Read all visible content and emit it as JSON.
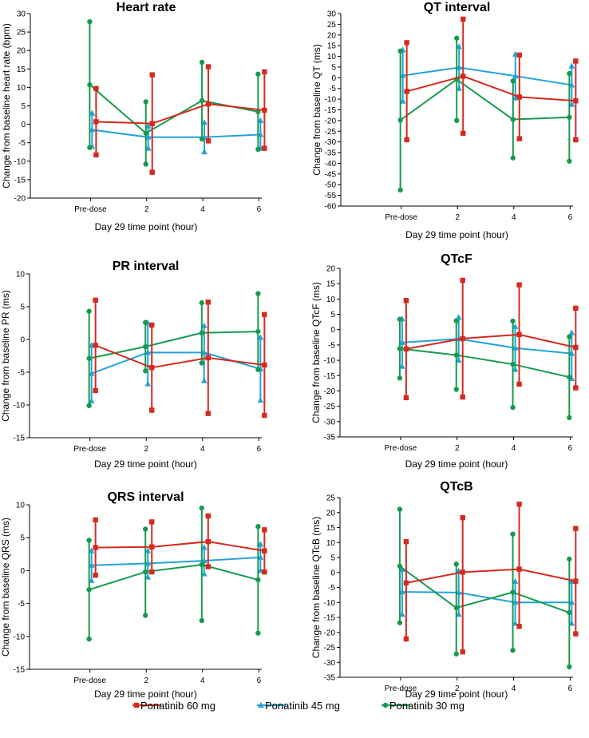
{
  "legend": {
    "items": [
      {
        "label": "Ponatinib 60 mg",
        "color": "#d42a1f",
        "marker": "square"
      },
      {
        "label": "Ponatinib 45 mg",
        "color": "#21a3d8",
        "marker": "triangle"
      },
      {
        "label": "Ponatinib 30 mg",
        "color": "#189a4e",
        "marker": "circle"
      }
    ]
  },
  "chart_data": [
    {
      "type": "line",
      "title": "Heart rate",
      "xlabel": "Day 29 time point (hour)",
      "ylabel": "Change from baseline heart rate (bpm)",
      "categories": [
        "Pre-dose",
        "2",
        "4",
        "6"
      ],
      "ylim": [
        -20,
        30
      ],
      "yticks": [
        30,
        25,
        20,
        15,
        10,
        5,
        0,
        -5,
        -10,
        -15,
        -20
      ],
      "series": [
        {
          "name": "Ponatinib 60 mg",
          "values": [
            0.7,
            0.2,
            5.5,
            3.8
          ],
          "lower": [
            -8.3,
            -13.0,
            -4.5,
            -6.5
          ],
          "upper": [
            9.7,
            13.4,
            15.6,
            14.2
          ]
        },
        {
          "name": "Ponatinib 45 mg",
          "values": [
            -1.5,
            -3.5,
            -3.5,
            -2.8
          ],
          "lower": [
            -6.0,
            -6.5,
            -7.5,
            -6.5
          ],
          "upper": [
            3.0,
            -0.5,
            0.5,
            1.0
          ]
        },
        {
          "name": "Ponatinib 30 mg",
          "values": [
            10.7,
            -2.4,
            6.4,
            3.4
          ],
          "lower": [
            -6.3,
            -10.8,
            -4.0,
            -6.8
          ],
          "upper": [
            27.8,
            6.1,
            16.8,
            13.6
          ]
        }
      ]
    },
    {
      "type": "line",
      "title": "QT interval",
      "xlabel": "Day 29 time point (hour)",
      "ylabel": "Change from baseline QT (ms)",
      "categories": [
        "Pre-dose",
        "2",
        "4",
        "6"
      ],
      "ylim": [
        -60,
        30
      ],
      "yticks": [
        30,
        25,
        20,
        15,
        10,
        5,
        0,
        -5,
        -10,
        -15,
        -20,
        -25,
        -30,
        -35,
        -40,
        -45,
        -50,
        -55,
        -60
      ],
      "series": [
        {
          "name": "Ponatinib 60 mg",
          "values": [
            -6.4,
            0.7,
            -9.0,
            -10.8
          ],
          "lower": [
            -29.0,
            -26.0,
            -28.5,
            -29.0
          ],
          "upper": [
            16.4,
            27.4,
            10.6,
            7.8
          ]
        },
        {
          "name": "Ponatinib 45 mg",
          "values": [
            1.0,
            4.8,
            0.8,
            -3.4
          ],
          "lower": [
            -11.0,
            -5.0,
            -9.5,
            -12.5
          ],
          "upper": [
            13.0,
            14.5,
            11.0,
            5.5
          ]
        },
        {
          "name": "Ponatinib 30 mg",
          "values": [
            -19.8,
            -0.8,
            -19.5,
            -18.5
          ],
          "lower": [
            -52.5,
            -20.0,
            -37.5,
            -39.0
          ],
          "upper": [
            12.5,
            18.5,
            -1.5,
            2.0
          ]
        }
      ]
    },
    {
      "type": "line",
      "title": "PR interval",
      "xlabel": "Day 29 time point (hour)",
      "ylabel": "Change from baseline PR (ms)",
      "categories": [
        "Pre-dose",
        "2",
        "4",
        "6"
      ],
      "ylim": [
        -15,
        10
      ],
      "yticks": [
        10,
        5,
        0,
        -5,
        -10,
        -15
      ],
      "series": [
        {
          "name": "Ponatinib 60 mg",
          "values": [
            -0.9,
            -4.3,
            -2.8,
            -3.9
          ],
          "lower": [
            -7.8,
            -10.8,
            -11.3,
            -11.6
          ],
          "upper": [
            6.0,
            2.2,
            5.7,
            3.8
          ]
        },
        {
          "name": "Ponatinib 45 mg",
          "values": [
            -5.2,
            -2.0,
            -2.0,
            -4.5
          ],
          "lower": [
            -9.4,
            -6.8,
            -6.3,
            -9.3
          ],
          "upper": [
            -0.9,
            2.5,
            2.1,
            0.3
          ]
        },
        {
          "name": "Ponatinib 30 mg",
          "values": [
            -2.9,
            -1.1,
            1.0,
            1.2
          ],
          "lower": [
            -10.1,
            -4.8,
            -3.6,
            -4.6
          ],
          "upper": [
            4.3,
            2.6,
            5.6,
            7.0
          ]
        }
      ]
    },
    {
      "type": "line",
      "title": "QTcF",
      "xlabel": "Day 29 time point (hour)",
      "ylabel": "Change from baseline QTcF (ms)",
      "categories": [
        "Pre-dose",
        "2",
        "4",
        "6"
      ],
      "ylim": [
        -35,
        20
      ],
      "yticks": [
        20,
        15,
        10,
        5,
        0,
        -5,
        -10,
        -15,
        -20,
        -25,
        -30,
        -35
      ],
      "series": [
        {
          "name": "Ponatinib 60 mg",
          "values": [
            -6.3,
            -2.9,
            -1.6,
            -5.8
          ],
          "lower": [
            -22.2,
            -22.0,
            -17.8,
            -19.0
          ],
          "upper": [
            9.5,
            16.1,
            14.6,
            7.0
          ]
        },
        {
          "name": "Ponatinib 45 mg",
          "values": [
            -4.2,
            -3.0,
            -6.0,
            -7.8
          ],
          "lower": [
            -12.0,
            -10.0,
            -13.0,
            -16.0
          ],
          "upper": [
            3.5,
            4.0,
            1.0,
            -1.0
          ]
        },
        {
          "name": "Ponatinib 30 mg",
          "values": [
            -6.2,
            -8.3,
            -11.3,
            -15.5
          ],
          "lower": [
            -15.8,
            -19.5,
            -25.4,
            -28.7
          ],
          "upper": [
            3.4,
            2.9,
            2.8,
            -2.3
          ]
        }
      ]
    },
    {
      "type": "line",
      "title": "QRS interval",
      "xlabel": "Day 29 time point (hour)",
      "ylabel": "Change from baseline QRS (ms)",
      "categories": [
        "Pre-dose",
        "2",
        "4",
        "6"
      ],
      "ylim": [
        -15,
        10
      ],
      "yticks": [
        10,
        5,
        0,
        -5,
        -10,
        -15
      ],
      "series": [
        {
          "name": "Ponatinib 60 mg",
          "values": [
            3.5,
            3.6,
            4.4,
            3.0
          ],
          "lower": [
            -0.7,
            -0.2,
            0.6,
            -0.2
          ],
          "upper": [
            7.7,
            7.4,
            8.3,
            6.2
          ]
        },
        {
          "name": "Ponatinib 45 mg",
          "values": [
            0.8,
            1.1,
            1.5,
            2.0
          ],
          "lower": [
            -1.5,
            -1.0,
            -0.5,
            0.0
          ],
          "upper": [
            3.0,
            3.0,
            3.5,
            4.0
          ]
        },
        {
          "name": "Ponatinib 30 mg",
          "values": [
            -2.9,
            -0.2,
            0.9,
            -1.4
          ],
          "lower": [
            -10.4,
            -6.8,
            -7.6,
            -9.5
          ],
          "upper": [
            4.6,
            6.3,
            9.5,
            6.7
          ]
        }
      ]
    },
    {
      "type": "line",
      "title": "QTcB",
      "xlabel": "Day 29 time point (hour)",
      "ylabel": "Change from baseline QTcB (ms)",
      "categories": [
        "Pre-dose",
        "2",
        "4",
        "6"
      ],
      "ylim": [
        -35,
        25
      ],
      "yticks": [
        25,
        20,
        15,
        10,
        5,
        0,
        -5,
        -10,
        -15,
        -20,
        -25,
        -30,
        -35
      ],
      "series": [
        {
          "name": "Ponatinib 60 mg",
          "values": [
            -3.5,
            0.1,
            1.1,
            -2.9
          ],
          "lower": [
            -22.2,
            -26.5,
            -18.0,
            -20.5
          ],
          "upper": [
            10.3,
            18.3,
            22.8,
            14.7
          ]
        },
        {
          "name": "Ponatinib 45 mg",
          "values": [
            -6.5,
            -6.7,
            -10.0,
            -10.0
          ],
          "lower": [
            -14.0,
            -14.0,
            -17.0,
            -17.0
          ],
          "upper": [
            1.0,
            0.5,
            -3.0,
            -3.0
          ]
        },
        {
          "name": "Ponatinib 30 mg",
          "values": [
            2.1,
            -11.8,
            -6.6,
            -13.4
          ],
          "lower": [
            -16.8,
            -27.2,
            -26.0,
            -31.5
          ],
          "upper": [
            21.1,
            2.8,
            12.8,
            4.5
          ]
        }
      ]
    }
  ]
}
